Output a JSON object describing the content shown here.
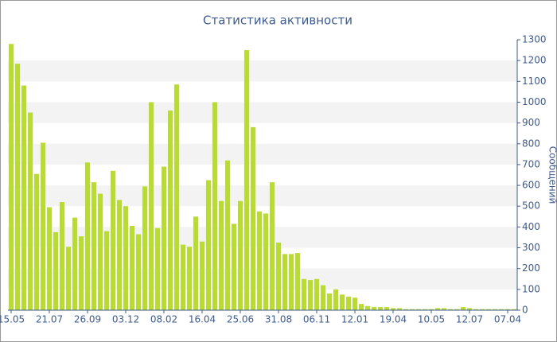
{
  "chart_data": {
    "type": "bar",
    "title": "Статистика активности",
    "y_label": "Сообщений",
    "categories": [
      "15.05",
      null,
      null,
      null,
      null,
      null,
      "21.07",
      null,
      null,
      null,
      null,
      null,
      "26.09",
      null,
      null,
      null,
      null,
      null,
      "03.12",
      null,
      null,
      null,
      null,
      null,
      "08.02",
      null,
      null,
      null,
      null,
      null,
      "16.04",
      null,
      null,
      null,
      null,
      null,
      "25.06",
      null,
      null,
      null,
      null,
      null,
      "31.08",
      null,
      null,
      null,
      null,
      null,
      "06.11",
      null,
      null,
      null,
      null,
      null,
      "12.01",
      null,
      null,
      null,
      null,
      null,
      "19.04",
      null,
      null,
      null,
      null,
      null,
      "10.05",
      null,
      null,
      null,
      null,
      null,
      "12.07",
      null,
      null,
      null,
      null,
      null,
      "07.04",
      null
    ],
    "values": [
      1280,
      1185,
      1080,
      950,
      655,
      805,
      495,
      375,
      520,
      305,
      445,
      355,
      710,
      615,
      560,
      380,
      670,
      530,
      500,
      405,
      365,
      595,
      1000,
      395,
      690,
      960,
      1085,
      315,
      305,
      450,
      330,
      625,
      1000,
      525,
      720,
      415,
      525,
      1250,
      880,
      475,
      465,
      615,
      325,
      270,
      270,
      275,
      150,
      145,
      150,
      120,
      80,
      100,
      75,
      65,
      60,
      30,
      20,
      15,
      15,
      15,
      10,
      10,
      5,
      5,
      5,
      5,
      5,
      10,
      10,
      5,
      5,
      15,
      10,
      5,
      5,
      5,
      5,
      5,
      5,
      5
    ],
    "color": "#b8dc34",
    "ylim": [
      0,
      1300
    ],
    "yticks": [
      0,
      100,
      200,
      300,
      400,
      500,
      600,
      700,
      800,
      900,
      1000,
      1100,
      1200,
      1300
    ],
    "grid": true,
    "y_axis_side": "right"
  }
}
